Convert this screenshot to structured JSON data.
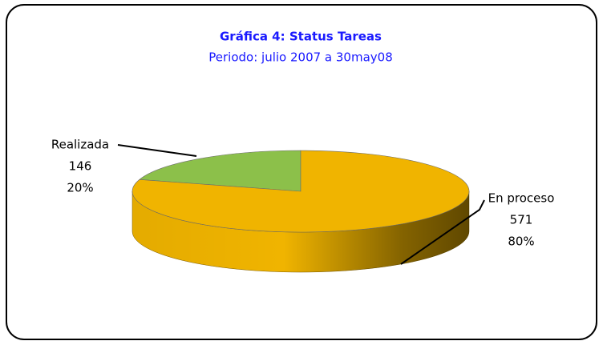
{
  "chart_data": {
    "type": "pie3d",
    "title": "Gráfica 4: Status Tareas",
    "subtitle": "Periodo: julio 2007 a 30may08",
    "categories": [
      "Realizada",
      "En proceso"
    ],
    "values": [
      146,
      571
    ],
    "percent_labels": [
      "20%",
      "80%"
    ],
    "colors": [
      "#8cc04a",
      "#f0b400"
    ]
  }
}
